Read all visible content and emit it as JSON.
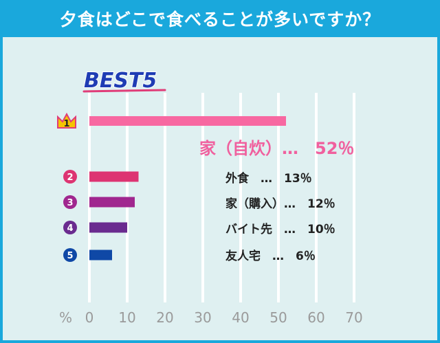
{
  "header": {
    "title": "夕食はどこで食べることが多いですか？"
  },
  "chart_data": {
    "type": "bar",
    "orientation": "horizontal",
    "title": "BEST5",
    "unit_label": "%",
    "xlim": [
      0,
      70
    ],
    "x_ticks": [
      0,
      10,
      20,
      30,
      40,
      50,
      60,
      70
    ],
    "grid": true,
    "categories": [
      "家（自炊）",
      "外食",
      "家（購入）",
      "バイト先",
      "友人宅"
    ],
    "ranks": [
      "1",
      "2",
      "3",
      "4",
      "5"
    ],
    "values": [
      52,
      13,
      12,
      10,
      6
    ],
    "labels": [
      "家（自炊）…　52％",
      "外食　…　13％",
      "家（購入）…　12％",
      "バイト先　…　10％",
      "友人宅　…　6％"
    ],
    "colors": [
      "#f768a1",
      "#dd3472",
      "#a0278f",
      "#6a2b8f",
      "#0f48a6"
    ]
  }
}
